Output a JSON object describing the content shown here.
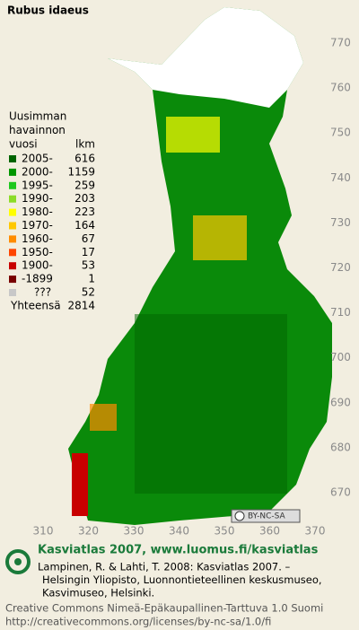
{
  "title": "Rubus idaeus",
  "legend": {
    "heading": [
      "Uusimman",
      "havainnon",
      "vuosi"
    ],
    "count_header": "lkm",
    "items": [
      {
        "label": "2005-",
        "color": "#006400",
        "count": 616
      },
      {
        "label": "2000-",
        "color": "#009600",
        "count": 1159
      },
      {
        "label": "1995-",
        "color": "#1ec81e",
        "count": 259
      },
      {
        "label": "1990-",
        "color": "#8cdc28",
        "count": 203
      },
      {
        "label": "1980-",
        "color": "#ffff00",
        "count": 223
      },
      {
        "label": "1970-",
        "color": "#ffc800",
        "count": 164
      },
      {
        "label": "1960-",
        "color": "#ff8c00",
        "count": 67
      },
      {
        "label": "1950-",
        "color": "#ff4600",
        "count": 17
      },
      {
        "label": "1900-",
        "color": "#c80000",
        "count": 53
      },
      {
        "label": "-1899",
        "color": "#780000",
        "count": 1
      },
      {
        "label": "???",
        "color": "#c8c8c8",
        "count": 52
      }
    ],
    "total_label": "Yhteensä",
    "total": 2814
  },
  "map": {
    "yticks": [
      770,
      760,
      750,
      740,
      730,
      720,
      710,
      700,
      690,
      680,
      670
    ],
    "xticks": [
      310,
      320,
      330,
      340,
      350,
      360,
      370
    ]
  },
  "license_badge": "BY-NC-SA",
  "footer": {
    "headline": "Kasviatlas 2007, www.luomus.fi/kasviatlas",
    "citation": [
      "Lampinen, R. & Lahti, T. 2008: Kasviatlas 2007. –",
      "Helsingin Yliopisto, Luonnontieteellinen keskusmuseo,",
      "Kasvimuseo, Helsinki."
    ],
    "license": [
      "Creative Commons Nimeä-Epäkaupallinen-Tarttuva 1.0 Suomi",
      "http://creativecommons.org/licenses/by-nc-sa/1.0/fi"
    ]
  }
}
